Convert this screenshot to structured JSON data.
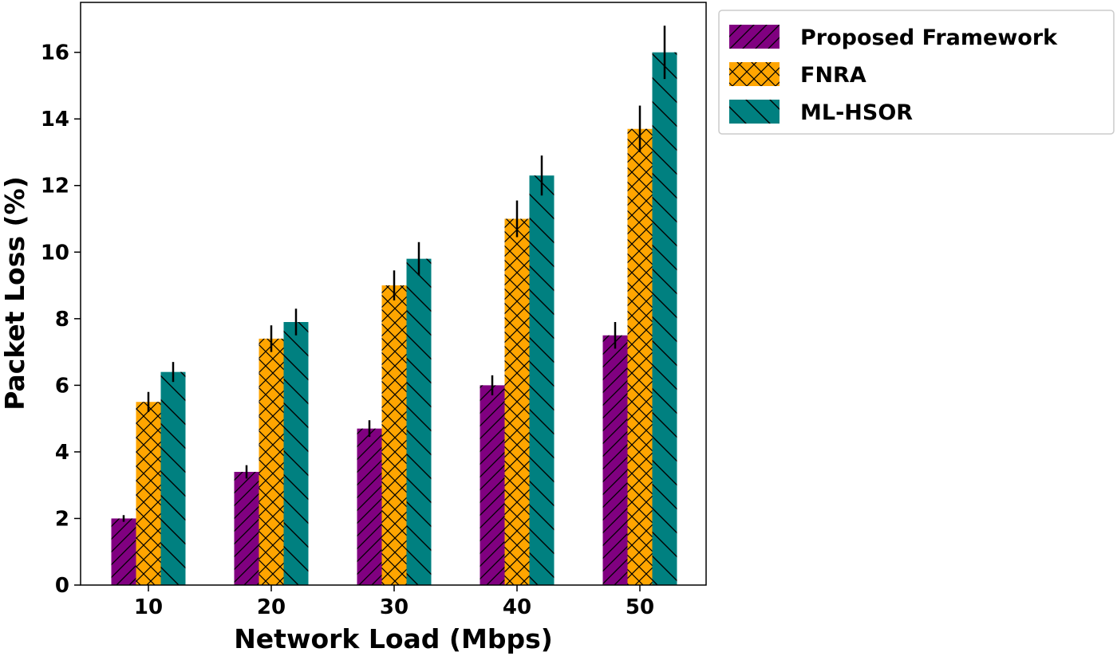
{
  "chart_data": {
    "type": "bar",
    "xlabel": "Network Load (Mbps)",
    "ylabel": "Packet Loss (%)",
    "categories": [
      "10",
      "20",
      "30",
      "40",
      "50"
    ],
    "ylim": [
      0,
      17.5
    ],
    "yticks": [
      0,
      2,
      4,
      6,
      8,
      10,
      12,
      14,
      16
    ],
    "grid": false,
    "legend_position": "outside-top-right",
    "series": [
      {
        "name": "Proposed Framework",
        "color": "#800080",
        "hatch": "diagonal-forward",
        "values": [
          2.0,
          3.4,
          4.7,
          6.0,
          7.5
        ],
        "errors": [
          0.1,
          0.2,
          0.25,
          0.3,
          0.4
        ]
      },
      {
        "name": "FNRA",
        "color": "#FFA500",
        "hatch": "crosshatch",
        "values": [
          5.5,
          7.4,
          9.0,
          11.0,
          13.7
        ],
        "errors": [
          0.3,
          0.4,
          0.45,
          0.55,
          0.7
        ]
      },
      {
        "name": "ML-HSOR",
        "color": "#008080",
        "hatch": "diagonal-back",
        "values": [
          6.4,
          7.9,
          9.8,
          12.3,
          16.0
        ],
        "errors": [
          0.3,
          0.4,
          0.5,
          0.6,
          0.8
        ]
      }
    ]
  }
}
